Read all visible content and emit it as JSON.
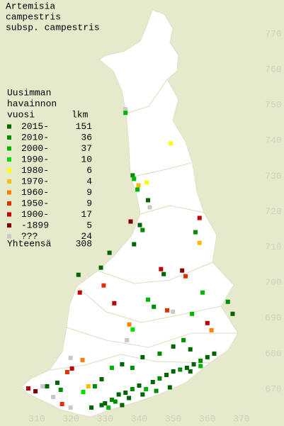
{
  "map": {
    "title": [
      "Artemisia",
      "campestris",
      "subsp. campestris"
    ],
    "legend": {
      "header": [
        "Uusimman",
        "havainnon",
        "vuosi"
      ],
      "count_header": "lkm",
      "entries": [
        {
          "label": "2015-",
          "count": 151,
          "color": "#006400"
        },
        {
          "label": "2010-",
          "count": 36,
          "color": "#008c00"
        },
        {
          "label": "2000-",
          "count": 37,
          "color": "#00b400"
        },
        {
          "label": "1990-",
          "count": 10,
          "color": "#00e000"
        },
        {
          "label": "1980-",
          "count": 6,
          "color": "#ffff00"
        },
        {
          "label": "1970-",
          "count": 4,
          "color": "#f0c000"
        },
        {
          "label": "1960-",
          "count": 9,
          "color": "#ff8000"
        },
        {
          "label": "1950-",
          "count": 9,
          "color": "#e03000"
        },
        {
          "label": "1900-",
          "count": 17,
          "color": "#c00000"
        },
        {
          "label": "-1899",
          "count": 5,
          "color": "#800000"
        },
        {
          "label": "???",
          "count": 24,
          "color": "#c8c8c8"
        }
      ],
      "total_label": "Yhteensä",
      "total": 308
    },
    "x_ticks": [
      310,
      320,
      330,
      340,
      350,
      360,
      370
    ],
    "y_ticks": [
      670,
      680,
      690,
      700,
      710,
      720,
      730,
      740,
      750,
      760,
      770
    ],
    "records": [
      [
        336.0,
        748.8,
        10
      ],
      [
        336.0,
        747.8,
        2
      ],
      [
        349.3,
        739.2,
        4
      ],
      [
        338.1,
        730.2,
        1
      ],
      [
        338.5,
        729.2,
        2
      ],
      [
        339.8,
        727.4,
        5
      ],
      [
        342.2,
        728.2,
        4
      ],
      [
        339.5,
        726.2,
        2
      ],
      [
        342.6,
        723.2,
        0
      ],
      [
        343.1,
        721.2,
        10
      ],
      [
        337.5,
        717.2,
        9
      ],
      [
        340.2,
        716.2,
        0
      ],
      [
        341.0,
        714.8,
        1
      ],
      [
        356.5,
        714.2,
        1
      ],
      [
        357.7,
        718.2,
        8
      ],
      [
        357.7,
        711.2,
        5
      ],
      [
        338.5,
        710.8,
        0
      ],
      [
        331.3,
        708.4,
        0
      ],
      [
        328.8,
        704.2,
        0
      ],
      [
        329.6,
        699.2,
        7
      ],
      [
        346.4,
        703.8,
        8
      ],
      [
        347.2,
        702.4,
        0
      ],
      [
        352.6,
        703.4,
        9
      ],
      [
        353.6,
        701.8,
        7
      ],
      [
        322.2,
        702.2,
        0
      ],
      [
        322.6,
        697.2,
        8
      ],
      [
        332.7,
        694.2,
        8
      ],
      [
        342.6,
        695.2,
        2
      ],
      [
        344.3,
        693.2,
        1
      ],
      [
        348.2,
        692.2,
        7
      ],
      [
        349.9,
        691.8,
        10
      ],
      [
        355.5,
        691.2,
        2
      ],
      [
        358.6,
        697.2,
        2
      ],
      [
        366.0,
        694.6,
        1
      ],
      [
        367.4,
        691.2,
        0
      ],
      [
        360.0,
        688.6,
        8
      ],
      [
        361.2,
        686.6,
        6
      ],
      [
        337.1,
        688.2,
        6
      ],
      [
        338.1,
        686.8,
        3
      ],
      [
        336.4,
        683.8,
        10
      ],
      [
        355.0,
        681.2,
        0
      ],
      [
        319.9,
        678.8,
        10
      ],
      [
        323.4,
        678.2,
        6
      ],
      [
        353.0,
        683.8,
        1
      ],
      [
        318.9,
        674.8,
        7
      ],
      [
        320.3,
        675.8,
        8
      ],
      [
        307.5,
        670.2,
        8
      ],
      [
        309.6,
        669.4,
        9
      ],
      [
        311.7,
        670.8,
        10
      ],
      [
        314.8,
        667.8,
        10
      ],
      [
        317.4,
        665.8,
        7
      ],
      [
        319.9,
        664.8,
        10
      ],
      [
        325.1,
        670.8,
        5
      ],
      [
        323.6,
        669.2,
        3
      ],
      [
        330,
        666,
        0
      ],
      [
        332,
        667,
        1
      ],
      [
        334,
        668.5,
        0
      ],
      [
        336,
        669,
        0
      ],
      [
        338,
        670,
        1
      ],
      [
        340,
        671,
        0
      ],
      [
        342,
        670,
        2
      ],
      [
        344,
        672,
        0
      ],
      [
        346,
        673,
        1
      ],
      [
        348,
        674,
        0
      ],
      [
        350,
        675,
        0
      ],
      [
        352,
        675.5,
        1
      ],
      [
        354,
        676,
        0
      ],
      [
        356,
        677,
        0
      ],
      [
        358,
        678,
        1
      ],
      [
        360,
        679,
        0
      ],
      [
        362,
        680,
        0
      ],
      [
        355,
        675,
        0
      ],
      [
        358,
        676.5,
        2
      ],
      [
        349,
        670.5,
        0
      ],
      [
        345,
        669.5,
        1
      ],
      [
        341,
        668.5,
        0
      ],
      [
        337,
        667.5,
        0
      ],
      [
        333,
        666.5,
        1
      ],
      [
        329,
        665.5,
        0
      ],
      [
        326,
        664.8,
        0
      ],
      [
        331,
        664.8,
        2
      ],
      [
        335,
        665.5,
        0
      ],
      [
        327,
        670.8,
        1
      ],
      [
        329,
        672.8,
        0
      ],
      [
        332,
        676,
        2
      ],
      [
        335,
        677,
        0
      ],
      [
        338,
        676,
        1
      ],
      [
        341,
        679,
        0
      ],
      [
        346,
        680,
        1
      ],
      [
        350,
        682,
        0
      ],
      [
        316,
        671.8,
        0
      ],
      [
        317,
        669.8,
        1
      ],
      [
        313,
        670.8,
        0
      ]
    ]
  }
}
